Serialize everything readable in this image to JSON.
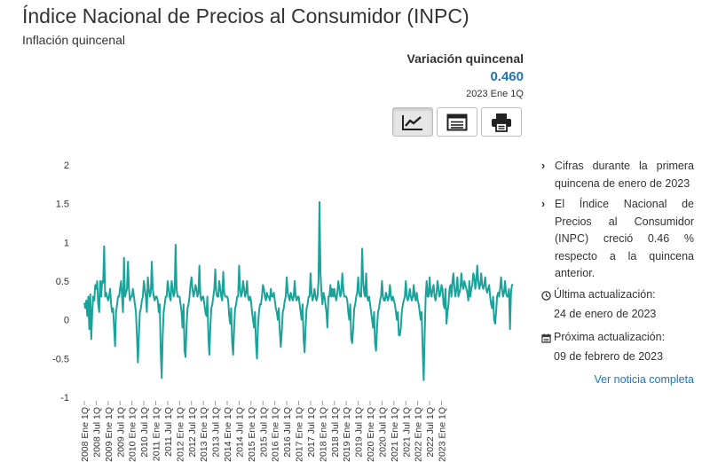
{
  "header": {
    "title": "Índice Nacional de Precios al Consumidor (INPC)",
    "subtitle": "Inflación quincenal"
  },
  "kpi": {
    "label": "Variación quincenal",
    "value": "0.460",
    "period": "2023 Ene 1Q"
  },
  "toolbar": {
    "buttons": [
      {
        "icon": "line-chart-icon",
        "active": true
      },
      {
        "icon": "table-icon",
        "active": false
      },
      {
        "icon": "printer-icon",
        "active": false
      }
    ]
  },
  "notes": {
    "items": [
      "Cifras durante la primera quincena de enero de 2023",
      "El Índice Nacional de Precios al Consumidor (INPC) creció 0.46 % respecto a la quincena anterior."
    ],
    "last_update_label": "Última actualización:",
    "last_update_date": "24 de enero de 2023",
    "next_update_label": "Próxima actualización:",
    "next_update_date": "09 de febrero de 2023",
    "link": "Ver noticia completa"
  },
  "colors": {
    "line": "#1aa39a",
    "link": "#1f77b4"
  },
  "chart_data": {
    "type": "line",
    "ylim": [
      -1,
      2
    ],
    "yticks": [
      "2",
      "1.5",
      "1",
      "0.5",
      "0",
      "-0.5",
      "-1"
    ],
    "ytick_values": [
      2,
      1.5,
      1,
      0.5,
      0,
      -0.5,
      -1
    ],
    "xticks": [
      "2008 Ene 1Q",
      "2008 Jul 1Q",
      "2009 Ene 1Q",
      "2009 Jul 1Q",
      "2010 Ene 1Q",
      "2010 Jul 1Q",
      "2011 Ene 1Q",
      "2011 Jul 1Q",
      "2012 Ene 1Q",
      "2012 Jul 1Q",
      "2013 Ene 1Q",
      "2013 Jul 1Q",
      "2014 Ene 1Q",
      "2014 Jul 1Q",
      "2015 Ene 1Q",
      "2015 Jul 1Q",
      "2016 Ene 1Q",
      "2016 Jul 1Q",
      "2017 Ene 1Q",
      "2017 Jul 1Q",
      "2018 Ene 1Q",
      "2018 Jul 1Q",
      "2019 Ene 1Q",
      "2019 Jul 1Q",
      "2020 Ene 1Q",
      "2020 Jul 1Q",
      "2021 Ene 1Q",
      "2021 Jul 1Q",
      "2022 Ene 1Q",
      "2022 Jul 1Q",
      "2023 Ene 1Q"
    ],
    "points_per_year": 24,
    "start": "2008 Ene 1Q",
    "values": [
      0.22,
      0.15,
      0.25,
      0.05,
      0.3,
      -0.12,
      0.33,
      -0.25,
      0.1,
      0.3,
      0.25,
      0.45,
      0.4,
      0.5,
      0.2,
      0.1,
      0.5,
      0.3,
      0.5,
      0.48,
      0.95,
      0.3,
      0.35,
      0.3,
      0.25,
      0.3,
      0.4,
      0.2,
      0.1,
      0.15,
      -0.1,
      -0.34,
      0.1,
      0.2,
      0.3,
      0.3,
      0.4,
      0.5,
      0.3,
      0.1,
      0.8,
      0.3,
      0.35,
      0.4,
      0.75,
      0.4,
      0.25,
      0.3,
      0.3,
      0.4,
      0.3,
      0.2,
      0.1,
      -0.2,
      -0.55,
      -0.2,
      0.1,
      0.15,
      0.25,
      0.3,
      0.5,
      0.4,
      0.3,
      0.1,
      0.55,
      0.4,
      0.3,
      0.35,
      0.75,
      0.4,
      0.3,
      0.25,
      0.3,
      0.3,
      0.25,
      0.1,
      0.2,
      -0.4,
      -0.75,
      -0.2,
      0.1,
      0.2,
      0.3,
      0.3,
      0.5,
      0.4,
      0.3,
      0.25,
      0.5,
      0.4,
      0.3,
      0.35,
      0.97,
      0.4,
      0.3,
      0.3,
      0.3,
      0.2,
      0.1,
      -0.1,
      0.2,
      -0.4,
      -0.48,
      -0.1,
      0.15,
      0.2,
      0.3,
      0.45,
      0.55,
      0.4,
      0.3,
      0.35,
      0.45,
      0.4,
      0.3,
      0.35,
      0.7,
      0.3,
      0.25,
      0.3,
      0.3,
      0.2,
      0.1,
      0.05,
      0.3,
      -0.2,
      -0.45,
      -0.1,
      0.15,
      0.2,
      0.3,
      0.4,
      0.65,
      0.35,
      0.3,
      0.3,
      0.5,
      0.4,
      0.3,
      0.25,
      0.62,
      0.35,
      0.3,
      0.3,
      0.3,
      0.25,
      0.05,
      -0.05,
      0.15,
      -0.3,
      -0.45,
      -0.1,
      0.15,
      0.2,
      0.3,
      0.3,
      0.7,
      0.4,
      0.3,
      0.35,
      0.5,
      0.4,
      0.3,
      0.35,
      0.5,
      0.3,
      0.25,
      0.3,
      0.25,
      0.1,
      0.0,
      -0.1,
      0.1,
      -0.3,
      -0.5,
      -0.1,
      0.1,
      0.2,
      0.2,
      0.3,
      0.45,
      0.4,
      0.3,
      0.25,
      0.35,
      0.3,
      0.3,
      0.25,
      0.4,
      0.3,
      0.3,
      0.35,
      0.25,
      0.15,
      0.1,
      0.0,
      0.15,
      -0.15,
      -0.35,
      -0.15,
      0.1,
      0.15,
      0.25,
      0.3,
      0.55,
      0.35,
      0.3,
      0.25,
      0.35,
      0.3,
      0.25,
      0.3,
      0.5,
      0.3,
      0.25,
      0.3,
      0.3,
      0.2,
      0.1,
      0.0,
      0.2,
      -0.25,
      -0.42,
      -0.1,
      0.15,
      0.2,
      0.3,
      0.3,
      0.6,
      0.35,
      0.25,
      0.3,
      0.4,
      0.3,
      0.25,
      0.3,
      0.5,
      1.52,
      0.6,
      0.35,
      0.2,
      0.35,
      0.3,
      0.2,
      0.1,
      -0.1,
      0.3,
      0.3,
      0.45,
      0.3,
      0.4,
      0.3,
      0.4,
      0.3,
      0.25,
      0.35,
      0.5,
      0.4,
      0.3,
      0.35,
      0.6,
      0.4,
      0.3,
      0.3,
      0.3,
      0.25,
      0.1,
      0.0,
      0.2,
      -0.25,
      -0.3,
      -0.1,
      0.15,
      0.2,
      0.3,
      0.35,
      0.55,
      0.35,
      0.3,
      0.3,
      0.92,
      0.5,
      0.35,
      0.3,
      0.6,
      0.3,
      0.25,
      0.3,
      0.2,
      0.1,
      0.0,
      -0.1,
      0.1,
      -0.3,
      -0.4,
      -0.1,
      0.1,
      0.15,
      0.25,
      0.3,
      0.5,
      0.3,
      0.25,
      0.25,
      0.35,
      0.3,
      0.25,
      0.3,
      0.45,
      0.3,
      0.25,
      0.3,
      0.25,
      0.2,
      0.1,
      0.0,
      0.1,
      -0.2,
      -0.2,
      -0.1,
      0.1,
      0.2,
      0.25,
      0.3,
      0.5,
      0.3,
      0.25,
      0.3,
      0.4,
      0.3,
      0.25,
      0.3,
      0.45,
      0.3,
      0.25,
      0.35,
      0.25,
      0.2,
      0.1,
      0.0,
      0.1,
      -0.4,
      -0.78,
      -0.2,
      0.3,
      0.5,
      0.3,
      0.3,
      0.55,
      0.35,
      0.3,
      0.4,
      0.45,
      0.3,
      0.25,
      0.35,
      0.5,
      0.4,
      0.3,
      0.35,
      0.45,
      0.4,
      0.2,
      0.15,
      0.4,
      -0.05,
      0.1,
      0.2,
      0.4,
      0.45,
      0.3,
      0.5,
      0.6,
      0.4,
      0.3,
      0.4,
      0.55,
      0.3,
      0.35,
      0.4,
      0.6,
      0.45,
      0.4,
      0.5,
      0.45,
      0.4,
      0.35,
      0.25,
      0.5,
      0.3,
      0.4,
      0.45,
      0.6,
      0.55,
      0.4,
      0.5,
      0.7,
      0.5,
      0.4,
      0.45,
      0.6,
      0.45,
      0.4,
      0.45,
      0.55,
      0.4,
      0.35,
      0.4,
      0.45,
      0.3,
      0.2,
      0.15,
      0.3,
      0.0,
      -0.05,
      0.1,
      0.3,
      0.35,
      0.3,
      0.4,
      0.55,
      0.4,
      0.3,
      0.35,
      0.5,
      0.35,
      0.3,
      0.3,
      0.4,
      -0.12,
      0.35,
      0.45,
      0.46
    ]
  }
}
